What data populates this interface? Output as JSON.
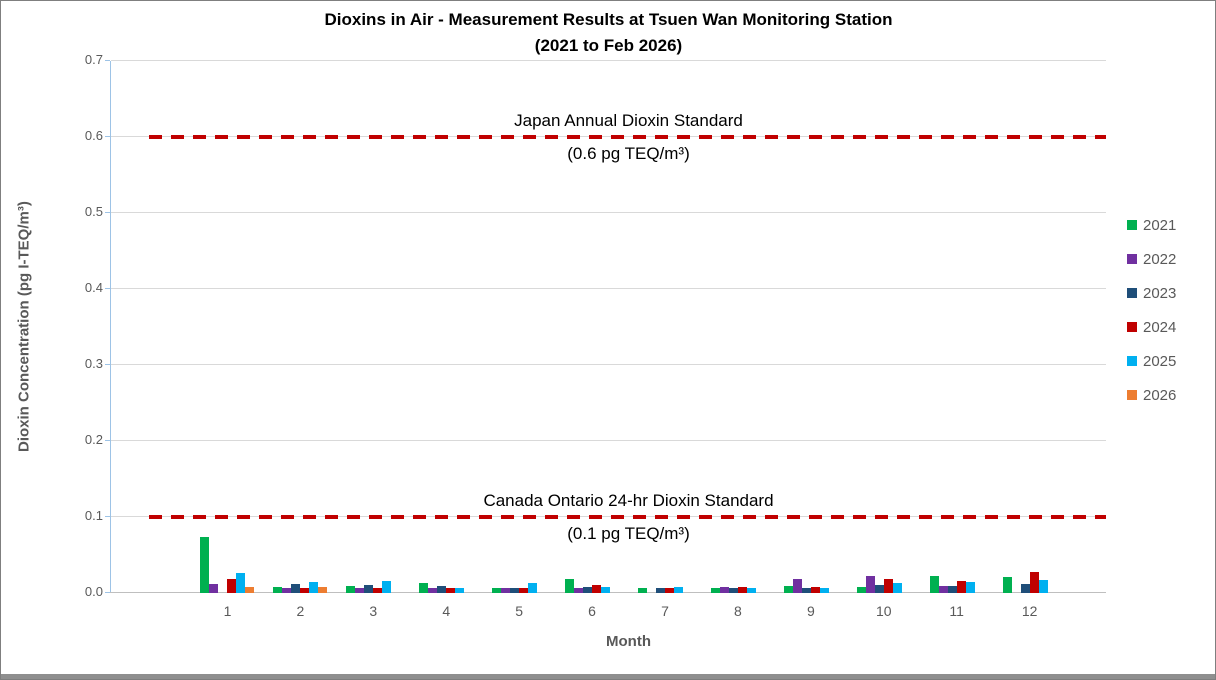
{
  "chart_data": {
    "type": "bar",
    "title_line1": "Dioxins in Air - Measurement Results at Tsuen Wan Monitoring Station",
    "title_line2": "(2021 to Feb 2026)",
    "xlabel": "Month",
    "ylabel": "Dioxin Concentration (pg I-TEQ/m³)",
    "ylim": [
      0,
      0.7
    ],
    "ytick_step": 0.1,
    "grid": true,
    "legend_position": "right",
    "categories": [
      "1",
      "2",
      "3",
      "4",
      "5",
      "6",
      "7",
      "8",
      "9",
      "10",
      "11",
      "12"
    ],
    "series": [
      {
        "name": "2021",
        "color": "#00B050",
        "values": [
          0.074,
          0.008,
          0.009,
          0.013,
          0.007,
          0.018,
          0.007,
          0.007,
          0.009,
          0.008,
          0.022,
          0.021
        ]
      },
      {
        "name": "2022",
        "color": "#7030A0",
        "values": [
          0.012,
          0.007,
          0.007,
          0.007,
          0.007,
          0.007,
          null,
          0.008,
          0.018,
          0.022,
          0.009,
          null
        ]
      },
      {
        "name": "2023",
        "color": "#1F4E79",
        "values": [
          null,
          0.012,
          0.01,
          0.009,
          0.006,
          0.008,
          0.007,
          0.007,
          0.006,
          0.011,
          0.009,
          0.012
        ]
      },
      {
        "name": "2024",
        "color": "#C00000",
        "values": [
          0.018,
          0.007,
          0.007,
          0.007,
          0.007,
          0.01,
          0.007,
          0.008,
          0.008,
          0.018,
          0.016,
          0.027
        ]
      },
      {
        "name": "2025",
        "color": "#00B0F0",
        "values": [
          0.026,
          0.015,
          0.016,
          0.007,
          0.013,
          0.008,
          0.008,
          0.007,
          0.007,
          0.013,
          0.014,
          0.017
        ]
      },
      {
        "name": "2026",
        "color": "#ED7D31",
        "values": [
          0.008,
          0.008,
          null,
          null,
          null,
          null,
          null,
          null,
          null,
          null,
          null,
          null
        ]
      }
    ],
    "reference_lines": [
      {
        "value": 0.6,
        "color": "#C00000",
        "label": "Japan Annual Dioxin Standard",
        "sublabel": "(0.6 pg TEQ/m³)"
      },
      {
        "value": 0.1,
        "color": "#C00000",
        "label": "Canada Ontario 24-hr Dioxin Standard",
        "sublabel": "(0.1 pg TEQ/m³)"
      }
    ],
    "colors": {
      "axis_line": "#9DC3E6",
      "gridline": "#D9D9D9",
      "text": "#595959",
      "title_text": "#000000"
    }
  }
}
